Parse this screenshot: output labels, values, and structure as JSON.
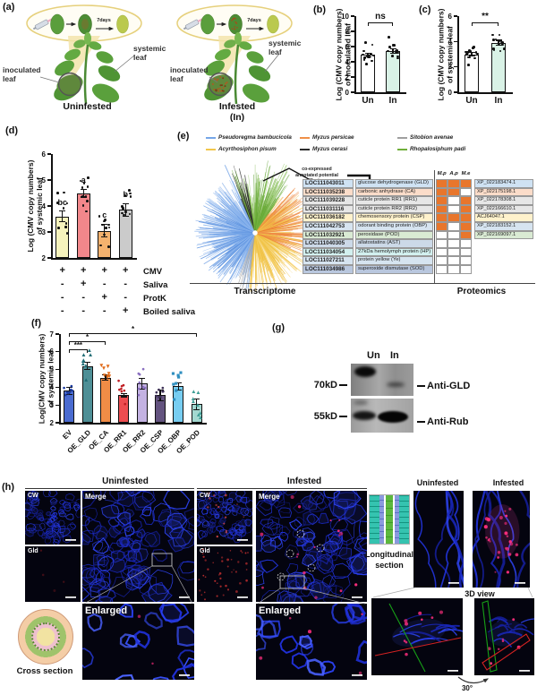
{
  "panel_labels": {
    "a": "(a)",
    "b": "(b)",
    "c": "(c)",
    "d": "(d)",
    "e": "(e)",
    "f": "(f)",
    "g": "(g)",
    "h": "(h)"
  },
  "panel_a": {
    "inset_days": "7days",
    "left_title": "Uninfested",
    "right_title": "Infested\n(In)",
    "inoculated_label": "inoculated\nleaf",
    "systemic_label": "systemic\nleaf"
  },
  "chart_data": [
    {
      "id": "b",
      "type": "bar",
      "categories": [
        "Un",
        "In"
      ],
      "values": [
        4.9,
        5.4
      ],
      "sem": [
        0.25,
        0.3
      ],
      "ylabel": "Log (CMV copy numbers)\nof inoculated leaf",
      "ylim": [
        0,
        10
      ],
      "yticks": [
        0,
        2,
        4,
        6,
        8,
        10
      ],
      "sig": "ns",
      "bar_colors": [
        "#ffffff",
        "#d9f2e6"
      ],
      "points_per_bar": 13
    },
    {
      "id": "c",
      "type": "bar",
      "categories": [
        "Un",
        "In"
      ],
      "values": [
        3.0,
        3.9
      ],
      "sem": [
        0.15,
        0.2
      ],
      "ylabel": "Log (CMV copy numbers)\nof systemic leaf",
      "ylim": [
        0,
        6
      ],
      "yticks": [
        0,
        2,
        4,
        6
      ],
      "sig": "**",
      "bar_colors": [
        "#ffffff",
        "#d9f2e6"
      ],
      "points_per_bar": 14
    },
    {
      "id": "d",
      "type": "bar",
      "categories": [
        "",
        "",
        "",
        ""
      ],
      "values": [
        3.6,
        4.5,
        3.05,
        3.85
      ],
      "sem": [
        0.2,
        0.15,
        0.25,
        0.25
      ],
      "letters": [
        "bc",
        "a",
        "c",
        "b"
      ],
      "ylabel": "Log (CMV copy numbers)\nof systemic leaf",
      "ylim": [
        2,
        6
      ],
      "yticks": [
        2,
        3,
        4,
        5,
        6
      ],
      "bar_colors": [
        "#f6f3bd",
        "#f2878b",
        "#f4b26e",
        "#cbcbcb"
      ],
      "points_per_bar": 10,
      "treatments": {
        "rows": [
          {
            "label": "CMV",
            "signs": [
              "+",
              "+",
              "+",
              "+"
            ]
          },
          {
            "label": "Saliva",
            "signs": [
              "-",
              "+",
              "-",
              "-"
            ]
          },
          {
            "label": "ProtK",
            "signs": [
              "-",
              "-",
              "+",
              "-"
            ]
          },
          {
            "label": "Boiled saliva",
            "signs": [
              "-",
              "-",
              "-",
              "+"
            ]
          }
        ]
      }
    },
    {
      "id": "f",
      "type": "bar",
      "categories": [
        "EV",
        "OE_GLD",
        "OE_CA",
        "OE_RR1",
        "OE_RR2",
        "OE_CSP",
        "OE_OBP",
        "OE_POD"
      ],
      "values": [
        3.8,
        5.2,
        4.55,
        3.55,
        4.2,
        3.55,
        4.05,
        3.05
      ],
      "sem": [
        0.2,
        0.2,
        0.15,
        0.08,
        0.3,
        0.3,
        0.2,
        0.3
      ],
      "ylabel": "Log(CMV copy numbers)\nof systemic leaf",
      "ylim": [
        2,
        7
      ],
      "yticks": [
        2,
        3,
        4,
        5,
        6,
        7
      ],
      "bar_colors": [
        "#4a6bd0",
        "#4e8f96",
        "#f08c46",
        "#ee4d50",
        "#c3b2e2",
        "#63537f",
        "#77cdf1",
        "#a3d8d0"
      ],
      "dot_colors": [
        "#1b3a9e",
        "#1f6c74",
        "#e06a18",
        "#c01f24",
        "#8a6fc0",
        "#3c2f55",
        "#2f8fc0",
        "#3f9e96"
      ],
      "dot_chars": [
        "●",
        "▲",
        "▼",
        "●",
        "●",
        "●",
        "■",
        "▲"
      ],
      "points_per_bar": 8,
      "brackets": [
        {
          "from": 0,
          "to": 1,
          "label": "***",
          "level": 6.15
        },
        {
          "from": 0,
          "to": 2,
          "label": "*",
          "level": 6.6
        },
        {
          "from": 0,
          "to": 7,
          "label": "*",
          "level": 7.05
        }
      ]
    }
  ],
  "panel_e": {
    "legend": [
      {
        "name": "Pseudoregma bambucicola",
        "color": "#76a6e8"
      },
      {
        "name": "Myzus persicae",
        "color": "#f09048"
      },
      {
        "name": "Sitobion avenae",
        "color": "#9f9f9f"
      },
      {
        "name": "Acyrthosiphon pisum",
        "color": "#f2c64b"
      },
      {
        "name": "Myzus cerasi",
        "color": "#2b2b2b"
      },
      {
        "name": "Rhopalosiphum padi",
        "color": "#6fae3a"
      }
    ],
    "annotation": "co-expressed\nannotated potential\neffectors",
    "col_headers": [
      "M.p",
      "A.p",
      "M.e"
    ],
    "check_color": "#e8762c",
    "rows": [
      {
        "loc": "LOC111043011",
        "name": "glucose dehydrogenase (GLD)",
        "cells": [
          1,
          1,
          1
        ],
        "acc": "XP_022183474.1",
        "bg": "#cfe2f3"
      },
      {
        "loc": "LOC111035238",
        "name": "carbonic anhydrase (CA)",
        "cells": [
          1,
          1,
          0
        ],
        "acc": "XP_022175198.1",
        "bg": "#fbdcc9"
      },
      {
        "loc": "LOC111039228",
        "name": "cuticle protein RR1 (RR1)",
        "cells": [
          1,
          0,
          1
        ],
        "acc": "XP_022178308.1",
        "bg": "#e6e6e6"
      },
      {
        "loc": "LOC111031116",
        "name": "cuticle protein RR2 (RR2)",
        "cells": [
          1,
          0,
          1
        ],
        "acc": "XP_022166610.1",
        "bg": "#e6e6e6"
      },
      {
        "loc": "LOC111036182",
        "name": "chemosensory protein (CSP)",
        "cells": [
          1,
          1,
          1
        ],
        "acc": "ACJ64047.1",
        "bg": "#fff2cc"
      },
      {
        "loc": "LOC111042753",
        "name": "odorant binding protein (OBP)",
        "cells": [
          1,
          0,
          1
        ],
        "acc": "XP_022183152.1",
        "bg": "#d6e4f0"
      },
      {
        "loc": "LOC111032921",
        "name": "peroxidase (POD)",
        "cells": [
          0,
          0,
          1
        ],
        "acc": "XP_022169097.1",
        "bg": "#d9ead3"
      },
      {
        "loc": "LOC111040305",
        "name": "allatostatins (AST)",
        "cells": [
          0,
          0,
          0
        ],
        "acc": "",
        "bg": "#ccd9e8"
      },
      {
        "loc": "LOC111034054",
        "name": "27kDa hemolymph protein (HP)",
        "cells": [
          0,
          0,
          0
        ],
        "acc": "",
        "bg": "#d2f0ef"
      },
      {
        "loc": "LOC111027211",
        "name": "protein yellow (Ye)",
        "cells": [
          0,
          0,
          0
        ],
        "acc": "",
        "bg": "#d6e4f0"
      },
      {
        "loc": "LOC111034986",
        "name": "superoxide dismutase (SOD)",
        "cells": [
          0,
          0,
          0
        ],
        "acc": "",
        "bg": "#b9c7de"
      }
    ],
    "footer_left": "Transcriptome",
    "footer_right": "Proteomics"
  },
  "panel_g": {
    "lane_un": "Un",
    "lane_in": "In",
    "marker_top": "70kD",
    "marker_bottom": "55kD",
    "antibody_top": "Anti-GLD",
    "antibody_bottom": "Anti-Rub"
  },
  "panel_h": {
    "group_titles": {
      "uninfested": "Uninfested",
      "infested": "Infested"
    },
    "tile_labels": {
      "cw": "CW",
      "gld": "Gld",
      "merge": "Merge",
      "enlarged": "Enlarged"
    },
    "cross_section_label": "Cross section",
    "longitudinal_label": "Longitudinal\nsection",
    "right_titles": {
      "uninfested": "Uninfested",
      "infested": "Infested"
    },
    "view3d_label": "3D view",
    "rotation_label": "30°"
  }
}
